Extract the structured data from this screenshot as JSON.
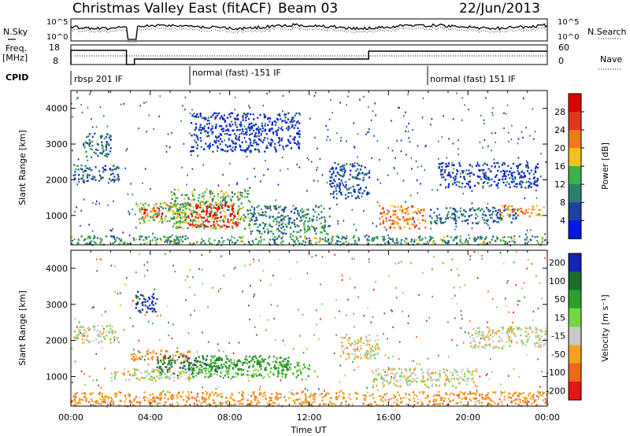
{
  "header": {
    "station": "Christmas Valley East (fitACF)",
    "beam": "Beam 03",
    "date": "22/Jun/2013"
  },
  "strip_labels": {
    "nsky": "N.Sky",
    "freq_line1": "Freq.",
    "freq_line2": "[MHz]",
    "cpid": "CPID",
    "nsearch": "N.Search",
    "nave": "Nave"
  },
  "strip_ticks": {
    "nsky_top": "10^5",
    "nsky_bottom": "10^0",
    "nsearch_top": "10^5",
    "nsearch_bottom": "10^0",
    "freq_top": "18",
    "freq_bottom": "8",
    "nave_top": "60",
    "nave_bottom": "0"
  },
  "cpid_modes": [
    {
      "label": "rbsp 201 IF",
      "start_hour": 0
    },
    {
      "label": "normal (fast) -151 IF",
      "start_hour": 6
    },
    {
      "label": "normal (fast) 151 IF",
      "start_hour": 18
    }
  ],
  "chart_data": [
    {
      "type": "heatmap",
      "title": "",
      "xlabel": "Time UT",
      "ylabel": "Slant Range [km]",
      "x_range_hours": [
        0,
        24
      ],
      "x_tick_labels": [
        "00:00",
        "04:00",
        "08:00",
        "12:00",
        "16:00",
        "20:00",
        "00:00"
      ],
      "ylim": [
        180,
        4500
      ],
      "y_tick_labels": [
        "1000",
        "2000",
        "3000",
        "4000"
      ],
      "y_ticks": [
        1000,
        2000,
        3000,
        4000
      ],
      "colorbar": {
        "label": "Power [dB]",
        "tick_labels": [
          "4",
          "8",
          "12",
          "16",
          "20",
          "24",
          "28"
        ],
        "colors": [
          "#0018e6",
          "#21419b",
          "#2e7e6e",
          "#40b04c",
          "#f2c11b",
          "#f0791a",
          "#e8341c",
          "#df0000"
        ]
      },
      "regions": [
        {
          "t": [
            0.1,
            2.4
          ],
          "range": [
            1950,
            2450
          ],
          "value": 8
        },
        {
          "t": [
            0.6,
            2.0
          ],
          "range": [
            2650,
            3350
          ],
          "value": 8
        },
        {
          "t": [
            3.2,
            6.0
          ],
          "range": [
            800,
            1400
          ],
          "value": 16
        },
        {
          "t": [
            3.5,
            4.6
          ],
          "range": [
            950,
            1250
          ],
          "value": 26
        },
        {
          "t": [
            5.0,
            9.0
          ],
          "range": [
            650,
            1750
          ],
          "value": 14
        },
        {
          "t": [
            5.8,
            8.4
          ],
          "range": [
            700,
            1350
          ],
          "value": 28
        },
        {
          "t": [
            9.0,
            13.0
          ],
          "range": [
            500,
            1300
          ],
          "value": 10
        },
        {
          "t": [
            6.0,
            11.5
          ],
          "range": [
            2800,
            3900
          ],
          "value": 4
        },
        {
          "t": [
            13.0,
            15.0
          ],
          "range": [
            1500,
            2500
          ],
          "value": 6
        },
        {
          "t": [
            15.5,
            17.9
          ],
          "range": [
            650,
            1300
          ],
          "value": 22
        },
        {
          "t": [
            18.0,
            22.5
          ],
          "range": [
            800,
            1250
          ],
          "value": 8
        },
        {
          "t": [
            21.5,
            23.8
          ],
          "range": [
            1000,
            1300
          ],
          "value": 22
        },
        {
          "t": [
            18.5,
            23.5
          ],
          "range": [
            1800,
            2500
          ],
          "value": 5
        },
        {
          "t": [
            0.0,
            24.0
          ],
          "range": [
            200,
            450
          ],
          "value": 12
        }
      ]
    },
    {
      "type": "heatmap",
      "title": "",
      "xlabel": "Time UT",
      "ylabel": "Slant Range [km]",
      "x_range_hours": [
        0,
        24
      ],
      "x_tick_labels": [
        "00:00",
        "04:00",
        "08:00",
        "12:00",
        "16:00",
        "20:00",
        "00:00"
      ],
      "ylim": [
        180,
        4500
      ],
      "y_tick_labels": [
        "1000",
        "2000",
        "3000",
        "4000"
      ],
      "y_ticks": [
        1000,
        2000,
        3000,
        4000
      ],
      "colorbar": {
        "label": "Velocity [m s⁻¹]",
        "tick_labels": [
          "200",
          "100",
          "50",
          "15",
          "-15",
          "-50",
          "-100",
          "-200"
        ],
        "colors": [
          "#1424b4",
          "#1f6e2c",
          "#2e9f2f",
          "#76d445",
          "#c8c8c8",
          "#f4a21c",
          "#f06818",
          "#e61414"
        ]
      },
      "regions": [
        {
          "t": [
            0.1,
            2.4
          ],
          "range": [
            1950,
            2450
          ],
          "value": 0
        },
        {
          "t": [
            3.2,
            4.3
          ],
          "range": [
            2800,
            3400
          ],
          "value": 220
        },
        {
          "t": [
            3.0,
            6.0
          ],
          "range": [
            1450,
            1750
          ],
          "value": -60
        },
        {
          "t": [
            4.3,
            7.6
          ],
          "range": [
            1100,
            1600
          ],
          "value": 180
        },
        {
          "t": [
            6.0,
            12.0
          ],
          "range": [
            1000,
            1450
          ],
          "value": 60
        },
        {
          "t": [
            7.0,
            11.0
          ],
          "range": [
            1200,
            1600
          ],
          "value": 80
        },
        {
          "t": [
            2.0,
            6.0
          ],
          "range": [
            900,
            1250
          ],
          "value": 0
        },
        {
          "t": [
            13.5,
            15.5
          ],
          "range": [
            1500,
            2200
          ],
          "value": 0
        },
        {
          "t": [
            15.0,
            20.5
          ],
          "range": [
            750,
            1250
          ],
          "value": 0
        },
        {
          "t": [
            20.0,
            24.0
          ],
          "range": [
            1800,
            2400
          ],
          "value": 0
        },
        {
          "t": [
            0.0,
            24.0
          ],
          "range": [
            200,
            600
          ],
          "value": -40
        }
      ]
    }
  ]
}
